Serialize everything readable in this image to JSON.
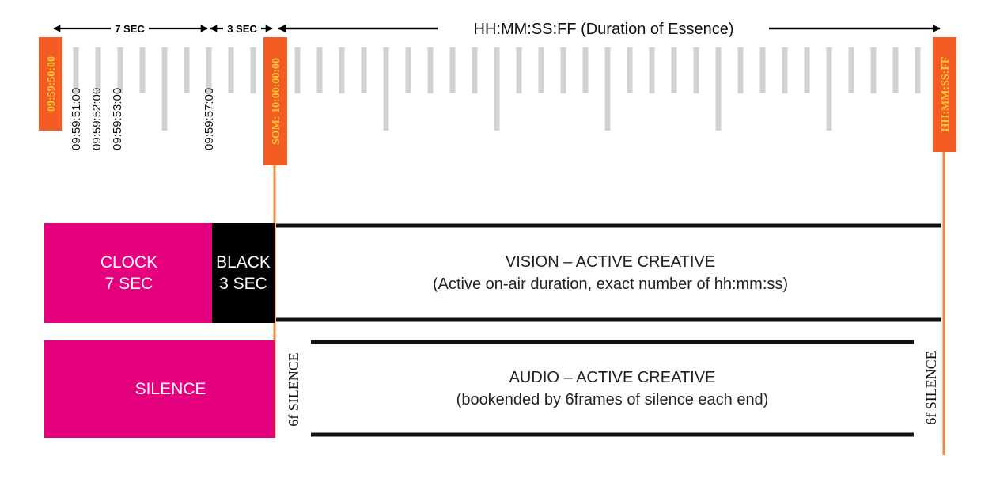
{
  "colors": {
    "magenta": "#e5007e",
    "black": "#000000",
    "orange": "#f25c22",
    "orange_line": "#f0883e",
    "gold_text": "#ffc934",
    "tick_grey": "#d2d2d2",
    "rule_black": "#111111"
  },
  "timeline": {
    "heading": "HH:MM:SS:FF (Duration of Essence)",
    "span_7": "7 SEC",
    "span_3": "3 SEC",
    "tag_start": "09:59:50:00",
    "tag_som": "SOM: 10:00:00:00",
    "tag_end": "HH:MM:SS:FF",
    "times": [
      "09:59:51:00",
      "09:59:52:00",
      "09:59:53:00",
      "09:59:57:00"
    ]
  },
  "vision": {
    "clock_line1": "CLOCK",
    "clock_line2": "7 SEC",
    "black_line1": "BLACK",
    "black_line2": "3 SEC",
    "title": "VISION – ACTIVE CREATIVE",
    "subtitle": "(Active on-air duration, exact number of hh:mm:ss)"
  },
  "audio": {
    "silence": "SILENCE",
    "pad_left": "6f SILENCE",
    "pad_right": "6f SILENCE",
    "title": "AUDIO – ACTIVE CREATIVE",
    "subtitle": "(bookended by 6frames of silence each end)"
  }
}
